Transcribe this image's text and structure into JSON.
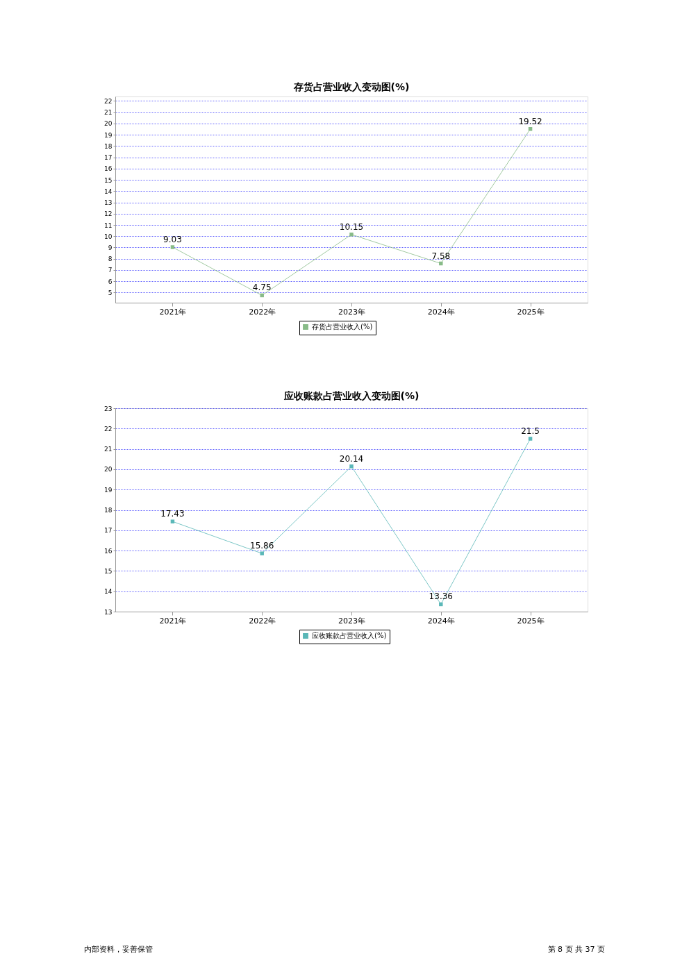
{
  "chart_data": [
    {
      "type": "line",
      "title": "存货占营业收入变动图(%)",
      "categories": [
        "2021年",
        "2022年",
        "2023年",
        "2024年",
        "2025年"
      ],
      "series": [
        {
          "name": "存货占营业收入(%)",
          "color": "#88bb88",
          "values": [
            9.03,
            4.75,
            10.15,
            7.58,
            19.52
          ]
        }
      ],
      "ylim": [
        4.1,
        22.4
      ],
      "yticks": [
        5,
        6,
        7,
        8,
        9,
        10,
        11,
        12,
        13,
        14,
        15,
        16,
        17,
        18,
        19,
        20,
        21,
        22
      ],
      "grid": "y",
      "legend": "bottom",
      "marker": "square",
      "line_style": "solid",
      "data_labels": true
    },
    {
      "type": "line",
      "title": "应收账款占营业收入变动图(%)",
      "categories": [
        "2021年",
        "2022年",
        "2023年",
        "2024年",
        "2025年"
      ],
      "series": [
        {
          "name": "应收账款占营业收入(%)",
          "color": "#5bb8b8",
          "values": [
            17.43,
            15.86,
            20.14,
            13.36,
            21.5
          ]
        }
      ],
      "ylim": [
        13,
        23
      ],
      "yticks": [
        13,
        14,
        15,
        16,
        17,
        18,
        19,
        20,
        21,
        22,
        23
      ],
      "grid": "y",
      "legend": "bottom",
      "marker": "square",
      "line_style": "solid",
      "data_labels": true,
      "annotations": [
        "内部资料，妥善保管",
        "第 8 页   共 37 页"
      ]
    }
  ]
}
